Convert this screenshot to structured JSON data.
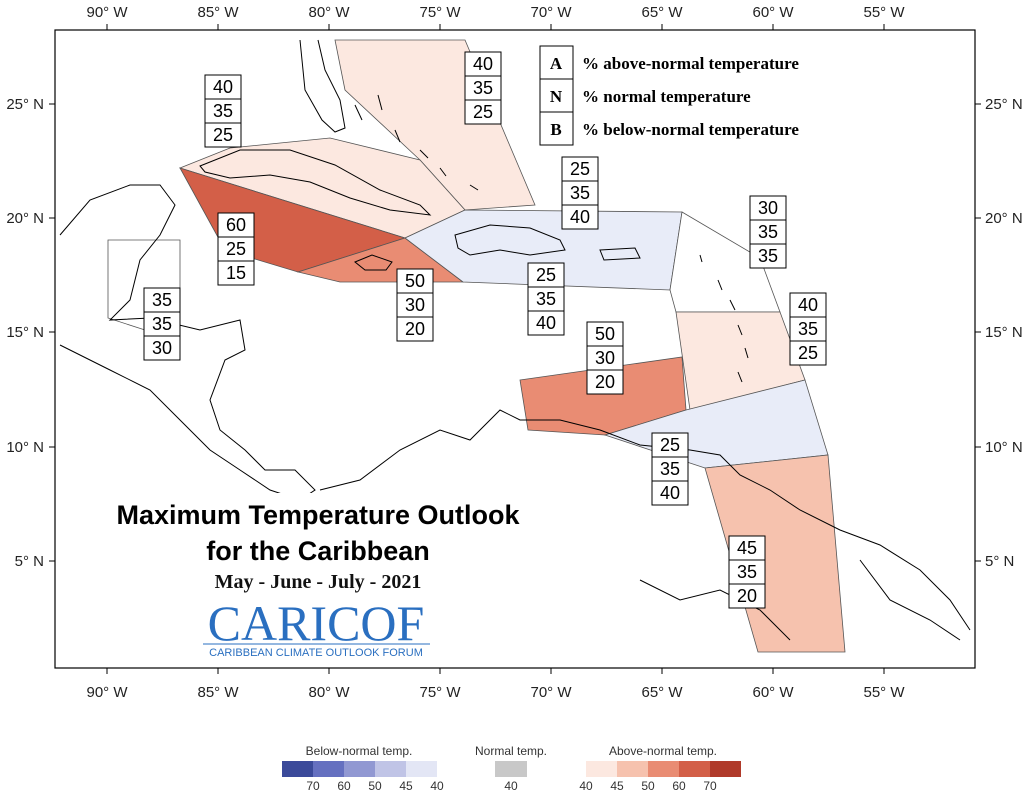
{
  "axes": {
    "x_ticks": [
      "90° W",
      "85° W",
      "80° W",
      "75° W",
      "70° W",
      "65° W",
      "60° W",
      "55° W"
    ],
    "y_ticks": [
      "25° N",
      "20° N",
      "15° N",
      "10° N",
      "5° N"
    ]
  },
  "title": {
    "line1": "Maximum Temperature Outlook",
    "line2": "for the Caribbean",
    "period": "May - June - July - 2021"
  },
  "logo": {
    "name": "CARICOF",
    "tagline": "CARIBBEAN CLIMATE OUTLOOK FORUM"
  },
  "legend": {
    "items": [
      {
        "key": "A",
        "text": "% above-normal temperature"
      },
      {
        "key": "N",
        "text": "% normal temperature"
      },
      {
        "key": "B",
        "text": "% below-normal temperature"
      }
    ]
  },
  "regions": [
    {
      "id": "bahamas",
      "above": "40",
      "normal": "35",
      "below": "25",
      "fill": "#fce8e0"
    },
    {
      "id": "cuba",
      "above": "40",
      "normal": "35",
      "below": "25",
      "fill": "#fce8e0"
    },
    {
      "id": "cayman",
      "above": "60",
      "normal": "25",
      "below": "15",
      "fill": "#d35f48"
    },
    {
      "id": "jamaica",
      "above": "50",
      "normal": "30",
      "below": "20",
      "fill": "#e98c73"
    },
    {
      "id": "hispaniola-pr",
      "above": "25",
      "normal": "35",
      "below": "40",
      "fill": "#e8ecf8"
    },
    {
      "id": "virgin-islands",
      "above": "25",
      "normal": "35",
      "below": "40",
      "fill": "#e8ecf8"
    },
    {
      "id": "leeward",
      "above": "30",
      "normal": "35",
      "below": "35",
      "fill": "#ffffff"
    },
    {
      "id": "windward",
      "above": "40",
      "normal": "35",
      "below": "25",
      "fill": "#fce8e0"
    },
    {
      "id": "abc-islands",
      "above": "50",
      "normal": "30",
      "below": "20",
      "fill": "#e98c73"
    },
    {
      "id": "trinidad",
      "above": "25",
      "normal": "35",
      "below": "40",
      "fill": "#e8ecf8"
    },
    {
      "id": "guianas",
      "above": "45",
      "normal": "35",
      "below": "20",
      "fill": "#f6c2ae"
    },
    {
      "id": "belize",
      "above": "35",
      "normal": "35",
      "below": "30",
      "fill": "#ffffff"
    }
  ],
  "colorbar": {
    "below_title": "Below-normal temp.",
    "normal_title": "Normal temp.",
    "above_title": "Above-normal temp.",
    "below_ticks": [
      "70",
      "60",
      "50",
      "45",
      "40"
    ],
    "normal_ticks": [
      "40"
    ],
    "above_ticks": [
      "40",
      "45",
      "50",
      "60",
      "70"
    ],
    "below_colors": [
      "#3b4a9a",
      "#6570c0",
      "#9198d2",
      "#c0c4e6",
      "#e3e6f5"
    ],
    "normal_color": "#c8c8c8",
    "above_colors": [
      "#fce8e0",
      "#f6c2ae",
      "#e98c73",
      "#d35f48",
      "#b03a2a"
    ]
  }
}
